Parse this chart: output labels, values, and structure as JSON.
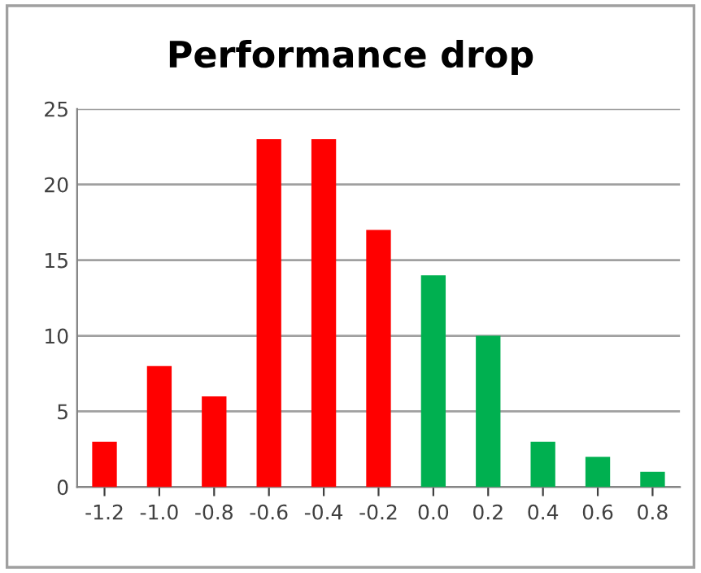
{
  "chart_data": {
    "type": "bar",
    "title": "Performance drop",
    "categories": [
      "-1.2",
      "-1.0",
      "-0.8",
      "-0.6",
      "-0.4",
      "-0.2",
      "0.0",
      "0.2",
      "0.4",
      "0.6",
      "0.8"
    ],
    "values": [
      3,
      8,
      6,
      23,
      23,
      17,
      14,
      10,
      3,
      2,
      1
    ],
    "colors": [
      "#ff0000",
      "#ff0000",
      "#ff0000",
      "#ff0000",
      "#ff0000",
      "#ff0000",
      "#00b050",
      "#00b050",
      "#00b050",
      "#00b050",
      "#00b050"
    ],
    "ylim": [
      0,
      25
    ],
    "yticks": [
      0,
      5,
      10,
      15,
      20,
      25
    ],
    "grid": "y",
    "legend": false
  }
}
